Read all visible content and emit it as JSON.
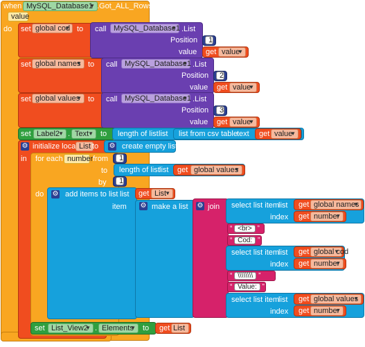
{
  "event": {
    "when": "when",
    "component": "MySQL_Database1",
    "event": ".Got_ALL_Rows",
    "param": "value",
    "do": "do"
  },
  "kw": {
    "set": "set",
    "to": "to",
    "call": "call",
    "list_method": ".List",
    "position": "Position",
    "value": "value",
    "get": "get",
    "length_of_list": "length of list",
    "list": "list",
    "list_from_csv": "list from csv table",
    "text": "text",
    "initialize_local": "initialize local",
    "create_empty_list": "create empty list",
    "in": "in",
    "for_each": "for each",
    "from": "from",
    "by": "by",
    "add_items": "add items to list",
    "item": "item",
    "make_a_list": "make a list",
    "join": "join",
    "select_list_item": "select list item",
    "index": "index",
    "dot": "."
  },
  "rows": [
    {
      "var": "global cod",
      "pos": "1"
    },
    {
      "var": "global names",
      "pos": "2"
    },
    {
      "var": "global values",
      "pos": "3"
    }
  ],
  "label_set": {
    "component": "Label2",
    "prop": "Text"
  },
  "local_var": "List",
  "loop": {
    "var": "number",
    "from": "1",
    "by": "1",
    "to_var": "global values"
  },
  "join_items": [
    {
      "list": "global names",
      "index": "number"
    },
    {
      "text": "<br>"
    },
    {
      "text": "Cod: "
    },
    {
      "list": "global cod",
      "index": "number"
    },
    {
      "text": "\\\\\\\\\\\\\\\\"
    },
    {
      "text": "Value: "
    },
    {
      "list": "global values",
      "index": "number"
    }
  ],
  "listview_set": {
    "component": "List_View2",
    "prop": "Elements",
    "get": "List"
  },
  "colors": {
    "event": "#f9a621",
    "variable": "#f04d1f",
    "procedure": "#6a3fb0",
    "component": "#2f9f3f",
    "list": "#16a1dc",
    "text": "#d6226a",
    "math": "#2b3f92"
  }
}
